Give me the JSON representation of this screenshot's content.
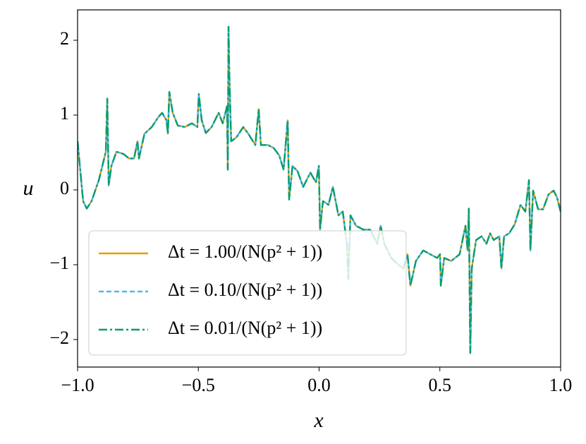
{
  "chart_data": {
    "type": "line",
    "x_label": "x",
    "y_label": "u",
    "xlim": [
      -1,
      1
    ],
    "ylim": [
      -2.368,
      2.406
    ],
    "xticks": [
      {
        "value": -1,
        "label": "−1.0"
      },
      {
        "value": -0.5,
        "label": "−0.5"
      },
      {
        "value": 0,
        "label": "0.0"
      },
      {
        "value": 0.5,
        "label": "0.5"
      },
      {
        "value": 1,
        "label": "1.0"
      }
    ],
    "yticks": [
      {
        "value": -2,
        "label": "−2"
      },
      {
        "value": -1,
        "label": "−1"
      },
      0,
      1,
      2
    ],
    "legend": "lower left",
    "x": [
      -1,
      -0.977,
      -0.962,
      -0.942,
      -0.912,
      -0.883,
      -0.877,
      -0.871,
      -0.86,
      -0.839,
      -0.81,
      -0.787,
      -0.766,
      -0.752,
      -0.746,
      -0.723,
      -0.693,
      -0.664,
      -0.65,
      -0.632,
      -0.626,
      -0.62,
      -0.606,
      -0.585,
      -0.556,
      -0.527,
      -0.504,
      -0.498,
      -0.486,
      -0.469,
      -0.445,
      -0.416,
      -0.399,
      -0.381,
      -0.378,
      -0.375,
      -0.372,
      -0.364,
      -0.343,
      -0.314,
      -0.293,
      -0.264,
      -0.25,
      -0.241,
      -0.212,
      -0.188,
      -0.165,
      -0.147,
      -0.13,
      -0.124,
      -0.11,
      -0.089,
      -0.066,
      -0.036,
      -0.013,
      -0.001,
      0.004,
      0.016,
      0.039,
      0.057,
      0.08,
      0.098,
      0.115,
      0.121,
      0.13,
      0.153,
      0.182,
      0.212,
      0.241,
      0.255,
      0.27,
      0.299,
      0.328,
      0.349,
      0.366,
      0.378,
      0.401,
      0.431,
      0.46,
      0.489,
      0.501,
      0.504,
      0.518,
      0.547,
      0.582,
      0.606,
      0.615,
      0.62,
      0.626,
      0.632,
      0.65,
      0.673,
      0.693,
      0.708,
      0.723,
      0.746,
      0.755,
      0.766,
      0.787,
      0.81,
      0.834,
      0.854,
      0.869,
      0.875,
      0.886,
      0.907,
      0.927,
      0.95,
      0.971,
      0.985,
      1
    ],
    "series": [
      {
        "name": "Δt = 1.00/(N(p² + 1))",
        "color": "#E69F00",
        "dash": "none",
        "values": [
          0.65,
          -0.15,
          -0.25,
          -0.15,
          0.13,
          0.51,
          1.22,
          0.06,
          0.32,
          0.51,
          0.48,
          0.42,
          0.42,
          0.65,
          0.42,
          0.75,
          0.84,
          0.98,
          1.03,
          0.93,
          0.75,
          1.31,
          1.03,
          0.86,
          0.84,
          0.89,
          0.84,
          1.28,
          0.93,
          0.76,
          0.84,
          1.03,
          0.89,
          1.12,
          0.27,
          2.18,
          1.59,
          0.65,
          0.7,
          0.84,
          0.75,
          0.6,
          1.08,
          0.6,
          0.6,
          0.56,
          0.46,
          0.27,
          0.93,
          -0.13,
          0.32,
          0.25,
          0.04,
          0.23,
          0.1,
          0.32,
          -0.53,
          -0.15,
          -0.2,
          0.04,
          -0.34,
          -0.29,
          -0.72,
          -1.19,
          -0.34,
          -0.48,
          -0.53,
          -0.53,
          -0.72,
          -0.48,
          -0.72,
          -0.91,
          -1,
          -1.05,
          -0.86,
          -1.28,
          -0.95,
          -0.81,
          -0.86,
          -0.91,
          -0.86,
          -1.28,
          -0.91,
          -0.95,
          -0.86,
          -0.48,
          -0.81,
          -0.25,
          -2.18,
          -1.05,
          -0.67,
          -0.62,
          -0.72,
          -0.58,
          -0.67,
          -0.62,
          -1.05,
          -0.62,
          -0.58,
          -0.46,
          -0.2,
          -0.29,
          0.13,
          -0.81,
          -0.01,
          -0.26,
          -0.26,
          -0.06,
          -0.01,
          -0.1,
          -0.29
        ]
      },
      {
        "name": "Δt = 0.10/(N(p² + 1))",
        "color": "#56B4E9",
        "dash": "7,4",
        "values": [
          0.65,
          -0.15,
          -0.25,
          -0.15,
          0.13,
          0.51,
          1.22,
          0.06,
          0.32,
          0.51,
          0.48,
          0.42,
          0.42,
          0.65,
          0.42,
          0.75,
          0.84,
          0.98,
          1.03,
          0.93,
          0.75,
          1.31,
          1.03,
          0.86,
          0.84,
          0.89,
          0.84,
          1.28,
          0.93,
          0.76,
          0.84,
          1.03,
          0.89,
          1.12,
          0.27,
          2.18,
          1.59,
          0.65,
          0.7,
          0.84,
          0.75,
          0.6,
          1.08,
          0.6,
          0.6,
          0.56,
          0.46,
          0.27,
          0.93,
          -0.13,
          0.32,
          0.25,
          0.04,
          0.23,
          0.1,
          0.32,
          -0.53,
          -0.15,
          -0.2,
          0.04,
          -0.34,
          -0.29,
          -0.72,
          -1.19,
          -0.34,
          -0.48,
          -0.53,
          -0.53,
          -0.72,
          -0.48,
          -0.72,
          -0.91,
          -1,
          -1.05,
          -0.86,
          -1.28,
          -0.95,
          -0.81,
          -0.86,
          -0.91,
          -0.86,
          -1.28,
          -0.91,
          -0.95,
          -0.86,
          -0.48,
          -0.81,
          -0.25,
          -2.18,
          -1.05,
          -0.67,
          -0.62,
          -0.72,
          -0.58,
          -0.67,
          -0.62,
          -1.05,
          -0.62,
          -0.58,
          -0.46,
          -0.2,
          -0.29,
          0.13,
          -0.81,
          -0.01,
          -0.26,
          -0.26,
          -0.06,
          -0.01,
          -0.1,
          -0.29
        ]
      },
      {
        "name": "Δt = 0.01/(N(p² + 1))",
        "color": "#009E73",
        "dash": "12,4,3,4",
        "values": [
          0.65,
          -0.15,
          -0.25,
          -0.15,
          0.13,
          0.51,
          1.22,
          0.06,
          0.32,
          0.51,
          0.48,
          0.42,
          0.42,
          0.65,
          0.42,
          0.75,
          0.84,
          0.98,
          1.03,
          0.93,
          0.75,
          1.31,
          1.03,
          0.86,
          0.84,
          0.89,
          0.84,
          1.28,
          0.93,
          0.76,
          0.84,
          1.03,
          0.89,
          1.12,
          0.27,
          2.18,
          1.59,
          0.65,
          0.7,
          0.84,
          0.75,
          0.6,
          1.08,
          0.6,
          0.6,
          0.56,
          0.46,
          0.27,
          0.93,
          -0.13,
          0.32,
          0.25,
          0.04,
          0.23,
          0.1,
          0.32,
          -0.53,
          -0.15,
          -0.2,
          0.04,
          -0.34,
          -0.29,
          -0.72,
          -1.19,
          -0.34,
          -0.48,
          -0.53,
          -0.53,
          -0.72,
          -0.48,
          -0.72,
          -0.91,
          -1,
          -1.05,
          -0.86,
          -1.28,
          -0.95,
          -0.81,
          -0.86,
          -0.91,
          -0.86,
          -1.28,
          -0.91,
          -0.95,
          -0.86,
          -0.48,
          -0.81,
          -0.25,
          -2.18,
          -1.05,
          -0.67,
          -0.62,
          -0.72,
          -0.58,
          -0.67,
          -0.62,
          -1.05,
          -0.62,
          -0.58,
          -0.46,
          -0.2,
          -0.29,
          0.13,
          -0.81,
          -0.01,
          -0.26,
          -0.26,
          -0.06,
          -0.01,
          -0.1,
          -0.29
        ]
      }
    ]
  }
}
